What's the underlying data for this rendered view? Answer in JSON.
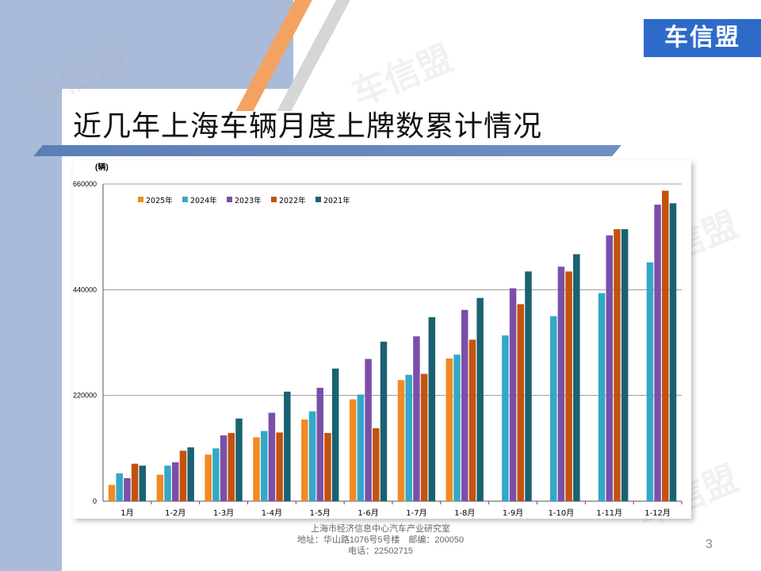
{
  "slide": {
    "title": "近几年上海车辆月度上牌数累计情况",
    "logo_text": "车信盟",
    "watermark": "车信盟",
    "page_number": "3",
    "footer_lines": [
      "上海市经济信息中心汽车产业研究室",
      "地址：华山路1076号5号楼　邮编：200050",
      "电话：22502715"
    ]
  },
  "colors": {
    "band": "#a9bbd9",
    "title_bar": "#5b7fb5",
    "logo": "#2e6bc9"
  },
  "chart_data": {
    "type": "bar",
    "ylabel": "(辆)",
    "ylim": [
      0,
      660000
    ],
    "yticks": [
      0,
      220000,
      440000,
      660000
    ],
    "ytick_labels": [
      "0",
      "220000",
      "440000",
      "660000"
    ],
    "legend_position": "top-left",
    "grid": "horizontal",
    "categories": [
      "1月",
      "1-2月",
      "1-3月",
      "1-4月",
      "1-5月",
      "1-6月",
      "1-7月",
      "1-8月",
      "1-9月",
      "1-10月",
      "1-11月",
      "1-12月"
    ],
    "series": [
      {
        "name": "2025年",
        "color": "#f08a24",
        "values": [
          34000,
          55000,
          97000,
          133000,
          170000,
          212000,
          252000,
          297000,
          null,
          null,
          null,
          null
        ]
      },
      {
        "name": "2024年",
        "color": "#33a8c7",
        "values": [
          58000,
          74000,
          110000,
          146000,
          187000,
          222000,
          263000,
          305000,
          345000,
          385000,
          433000,
          497000
        ]
      },
      {
        "name": "2023年",
        "color": "#7b4fa8",
        "values": [
          48000,
          81000,
          137000,
          184000,
          236000,
          296000,
          343000,
          398000,
          443000,
          488000,
          553000,
          617000
        ]
      },
      {
        "name": "2022年",
        "color": "#c4520e",
        "values": [
          78000,
          105000,
          142000,
          143000,
          142000,
          152000,
          265000,
          336000,
          410000,
          478000,
          566000,
          646000
        ]
      },
      {
        "name": "2021年",
        "color": "#1a6272",
        "values": [
          74000,
          112000,
          172000,
          228000,
          276000,
          332000,
          383000,
          423000,
          478000,
          514000,
          566000,
          620000
        ]
      }
    ]
  }
}
